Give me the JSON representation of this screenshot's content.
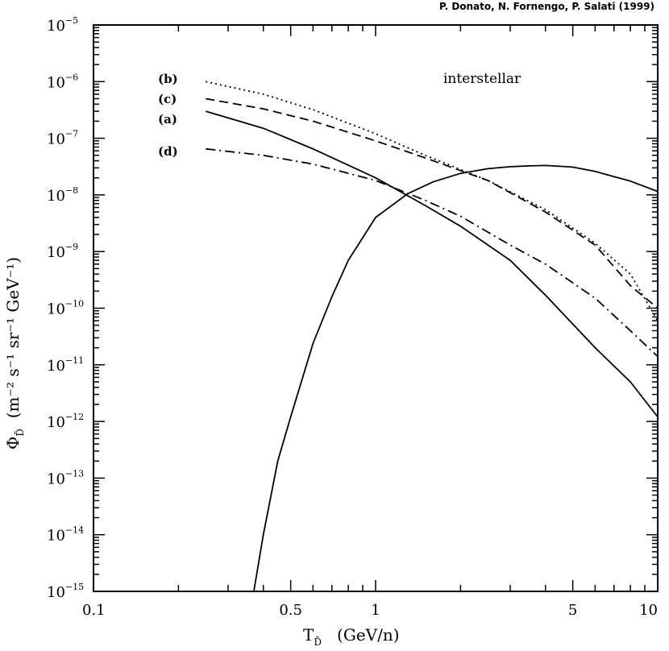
{
  "header": {
    "credit": "P. Donato, N. Fornengo, P. Salati (1999)"
  },
  "annotation": "interstellar",
  "axes": {
    "ylabel_symbol": "Φ",
    "ylabel_sub": "D̄",
    "ylabel_units": "(m⁻² s⁻¹ sr⁻¹ GeV⁻¹)",
    "xlabel_symbol": "T",
    "xlabel_sub": "D̄",
    "xlabel_units": "(GeV/n)"
  },
  "chart_data": {
    "type": "line",
    "xscale": "log",
    "yscale": "log",
    "xlim": [
      0.1,
      10
    ],
    "ylim": [
      1e-15,
      1e-05
    ],
    "xticks": [
      {
        "value": 0.1,
        "label": "0.1"
      },
      {
        "value": 0.5,
        "label": "0.5"
      },
      {
        "value": 1,
        "label": "1"
      },
      {
        "value": 5,
        "label": "5"
      },
      {
        "value": 10,
        "label": "10"
      }
    ],
    "yticks": [
      {
        "value": 1e-05,
        "base": "10",
        "exp": "−5"
      },
      {
        "value": 1e-06,
        "base": "10",
        "exp": "−6"
      },
      {
        "value": 1e-07,
        "base": "10",
        "exp": "−7"
      },
      {
        "value": 1e-08,
        "base": "10",
        "exp": "−8"
      },
      {
        "value": 1e-09,
        "base": "10",
        "exp": "−9"
      },
      {
        "value": 1e-10,
        "base": "10",
        "exp": "−10"
      },
      {
        "value": 1e-11,
        "base": "10",
        "exp": "−11"
      },
      {
        "value": 1e-12,
        "base": "10",
        "exp": "−12"
      },
      {
        "value": 1e-13,
        "base": "10",
        "exp": "−13"
      },
      {
        "value": 1e-14,
        "base": "10",
        "exp": "−14"
      },
      {
        "value": 1e-15,
        "base": "10",
        "exp": "−15"
      }
    ],
    "series": [
      {
        "name": "(b)",
        "style": "dotted",
        "x": [
          0.25,
          0.4,
          0.6,
          1.0,
          1.5,
          2.5,
          4.0,
          6.0,
          8.0,
          10.0
        ],
        "y": [
          1e-06,
          6e-07,
          3.2e-07,
          1.2e-07,
          5e-08,
          1.8e-08,
          5.5e-09,
          1.4e-09,
          4e-10,
          6e-11
        ]
      },
      {
        "name": "(c)",
        "style": "dashed",
        "x": [
          0.25,
          0.4,
          0.6,
          1.0,
          1.5,
          2.5,
          4.0,
          6.0,
          8.0,
          10.0
        ],
        "y": [
          5e-07,
          3.3e-07,
          2e-07,
          9e-08,
          4.5e-08,
          1.8e-08,
          5e-09,
          1.3e-09,
          2.5e-10,
          1e-10
        ]
      },
      {
        "name": "(a)",
        "style": "solid",
        "x": [
          0.25,
          0.4,
          0.6,
          1.0,
          1.5,
          2.0,
          3.0,
          4.0,
          6.0,
          8.0,
          10.0
        ],
        "y": [
          3e-07,
          1.5e-07,
          6.5e-08,
          2e-08,
          6.5e-09,
          2.8e-09,
          7e-10,
          1.7e-10,
          2e-11,
          5e-12,
          1.2e-12
        ]
      },
      {
        "name": "(d)",
        "style": "dashdot",
        "x": [
          0.25,
          0.4,
          0.6,
          1.0,
          1.5,
          2.0,
          3.0,
          4.0,
          6.0,
          8.0,
          10.0
        ],
        "y": [
          6.5e-08,
          5e-08,
          3.5e-08,
          1.8e-08,
          8e-09,
          4.2e-09,
          1.3e-09,
          6e-10,
          1.5e-10,
          4e-11,
          1.4e-11
        ]
      },
      {
        "name": "",
        "style": "solid",
        "x": [
          0.37,
          0.4,
          0.45,
          0.5,
          0.6,
          0.7,
          0.8,
          1.0,
          1.3,
          1.6,
          2.0,
          2.5,
          3.0,
          3.5,
          4.0,
          4.5,
          5.0,
          6.0,
          7.0,
          8.0,
          10.0
        ],
        "y": [
          1e-15,
          1e-14,
          2e-13,
          1.2e-12,
          2.4e-11,
          1.6e-10,
          7e-10,
          4e-09,
          1.05e-08,
          1.7e-08,
          2.4e-08,
          2.9e-08,
          3.15e-08,
          3.25e-08,
          3.3e-08,
          3.2e-08,
          3.1e-08,
          2.6e-08,
          2.1e-08,
          1.75e-08,
          1.15e-08
        ]
      }
    ]
  }
}
